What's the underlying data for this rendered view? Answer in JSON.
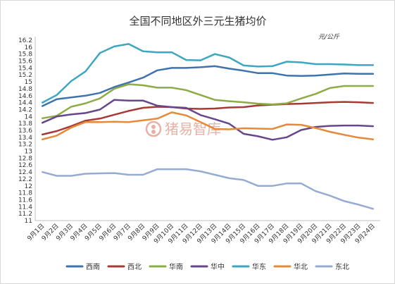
{
  "chart_data": {
    "type": "line",
    "title": "全国不同地区外三元生猪均价",
    "unit": "元/公斤",
    "watermark": "猪易智库",
    "categories": [
      "9月1日",
      "9月2日",
      "9月3日",
      "9月4日",
      "9月5日",
      "9月6日",
      "9月7日",
      "9月8日",
      "9月9日",
      "9月10日",
      "9月11日",
      "9月12日",
      "9月13日",
      "9月14日",
      "9月15日",
      "9月16日",
      "9月17日",
      "9月18日",
      "9月19日",
      "9月20日",
      "9月21日",
      "9月22日",
      "9月23日",
      "9月24日"
    ],
    "x_labels": [
      "9月1日",
      "9月2日",
      "9月3日",
      "9月4日",
      "9月5日",
      "9月6日",
      "9月7日",
      "9月8日",
      "9月9日",
      "9月10日",
      "9月11日",
      "9月12日",
      "9月13日",
      "9月14日",
      "9月15日",
      "9月16日",
      "9月17日",
      "9月18日",
      "9月19日",
      "9月20日",
      "9月21日",
      "9月22日",
      "9月23日",
      "9月24日"
    ],
    "y_ticks": [
      "16.2",
      "16",
      "15.8",
      "15.6",
      "15.4",
      "15.2",
      "15",
      "14.8",
      "14.6",
      "14.4",
      "14.2",
      "14",
      "13.8",
      "13.6",
      "13.4",
      "13.2",
      "13",
      "12.8",
      "12.6",
      "12.4",
      "12.2",
      "12",
      "11.8",
      "11.6",
      "11.4",
      "11.2",
      "11"
    ],
    "ylim": [
      11,
      16.2
    ],
    "grid": false,
    "legend_position": "bottom",
    "series": [
      {
        "name": "西南",
        "color": "#3e73ae",
        "values": [
          14.3,
          14.5,
          14.55,
          14.6,
          14.68,
          14.85,
          14.98,
          15.12,
          15.33,
          15.4,
          15.4,
          15.42,
          15.45,
          15.38,
          15.32,
          15.25,
          15.25,
          15.18,
          15.17,
          15.18,
          15.21,
          15.24,
          15.23,
          15.23
        ]
      },
      {
        "name": "西北",
        "color": "#a83a35",
        "values": [
          13.48,
          13.58,
          13.72,
          13.88,
          13.94,
          14.05,
          14.16,
          14.25,
          14.28,
          14.27,
          14.23,
          14.22,
          14.23,
          14.26,
          14.27,
          14.32,
          14.34,
          14.36,
          14.37,
          14.39,
          14.41,
          14.42,
          14.41,
          14.39
        ]
      },
      {
        "name": "华南",
        "color": "#8cac44",
        "values": [
          13.95,
          14.02,
          14.28,
          14.38,
          14.52,
          14.8,
          14.93,
          14.9,
          14.83,
          14.83,
          14.76,
          14.62,
          14.48,
          14.44,
          14.41,
          14.37,
          14.35,
          14.38,
          14.52,
          14.65,
          14.82,
          14.88,
          14.88,
          14.88
        ]
      },
      {
        "name": "华中",
        "color": "#67468a",
        "values": [
          13.82,
          14.0,
          14.06,
          14.1,
          14.2,
          14.48,
          14.46,
          14.46,
          14.31,
          14.27,
          14.25,
          14.04,
          13.92,
          13.79,
          13.5,
          13.43,
          13.33,
          13.4,
          13.61,
          13.7,
          13.73,
          13.74,
          13.74,
          13.72
        ]
      },
      {
        "name": "华东",
        "color": "#3fa6c2",
        "values": [
          14.4,
          14.62,
          15.02,
          15.3,
          15.83,
          16.02,
          16.09,
          15.88,
          15.85,
          15.85,
          15.63,
          15.62,
          15.8,
          15.7,
          15.47,
          15.44,
          15.45,
          15.58,
          15.56,
          15.51,
          15.51,
          15.5,
          15.48,
          15.48
        ]
      },
      {
        "name": "华北",
        "color": "#e48a3a",
        "values": [
          13.34,
          13.45,
          13.68,
          13.84,
          13.84,
          13.85,
          13.84,
          13.89,
          13.94,
          14.12,
          14.03,
          13.84,
          13.64,
          13.63,
          13.66,
          13.65,
          13.64,
          13.77,
          13.76,
          13.67,
          13.56,
          13.47,
          13.39,
          13.34
        ]
      },
      {
        "name": "东北",
        "color": "#96abd1",
        "values": [
          12.4,
          12.29,
          12.29,
          12.35,
          12.36,
          12.37,
          12.32,
          12.32,
          12.48,
          12.48,
          12.48,
          12.42,
          12.32,
          12.22,
          12.17,
          12.0,
          12.0,
          12.07,
          12.07,
          11.85,
          11.72,
          11.56,
          11.46,
          11.34
        ]
      }
    ]
  }
}
